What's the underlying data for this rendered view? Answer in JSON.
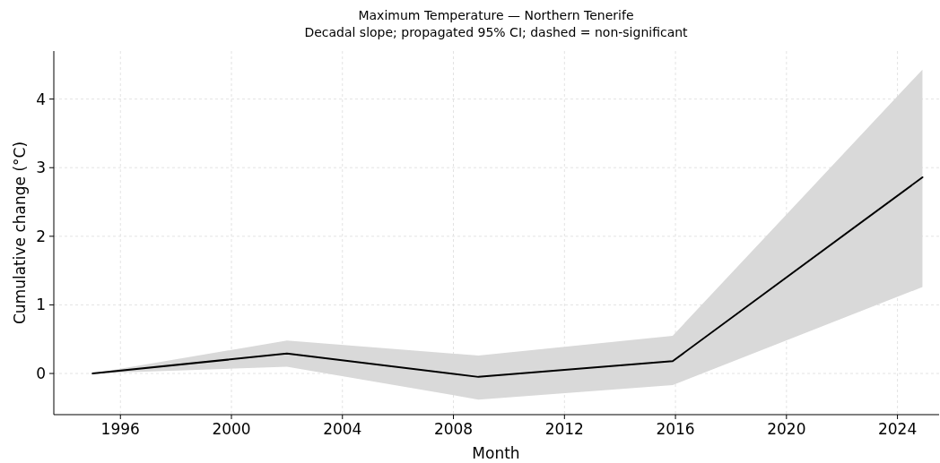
{
  "chart_data": {
    "type": "line",
    "title": "Maximum Temperature — Northern Tenerife",
    "subtitle": "Decadal slope; propagated 95% CI; dashed = non-significant",
    "xlabel": "Month",
    "ylabel": "Cumulative change (°C)",
    "x": [
      1995.0,
      2002.0,
      2008.9,
      2015.9,
      2024.9
    ],
    "series": [
      {
        "color": "#000000",
        "values": [
          0,
          0.29,
          -0.05,
          0.18,
          2.86
        ],
        "lower": [
          0,
          0.1,
          -0.38,
          -0.17,
          1.26
        ],
        "upper": [
          0,
          0.48,
          0.26,
          0.55,
          4.43
        ]
      }
    ],
    "xlim": [
      1993.6,
      2025.5
    ],
    "ylim": [
      -0.6,
      4.7
    ],
    "xticks": [
      1996,
      2000,
      2004,
      2008,
      2012,
      2016,
      2020,
      2024
    ],
    "yticks": [
      0,
      1,
      2,
      3,
      4
    ],
    "grid": true,
    "line_style": "solid",
    "marker": "none"
  }
}
